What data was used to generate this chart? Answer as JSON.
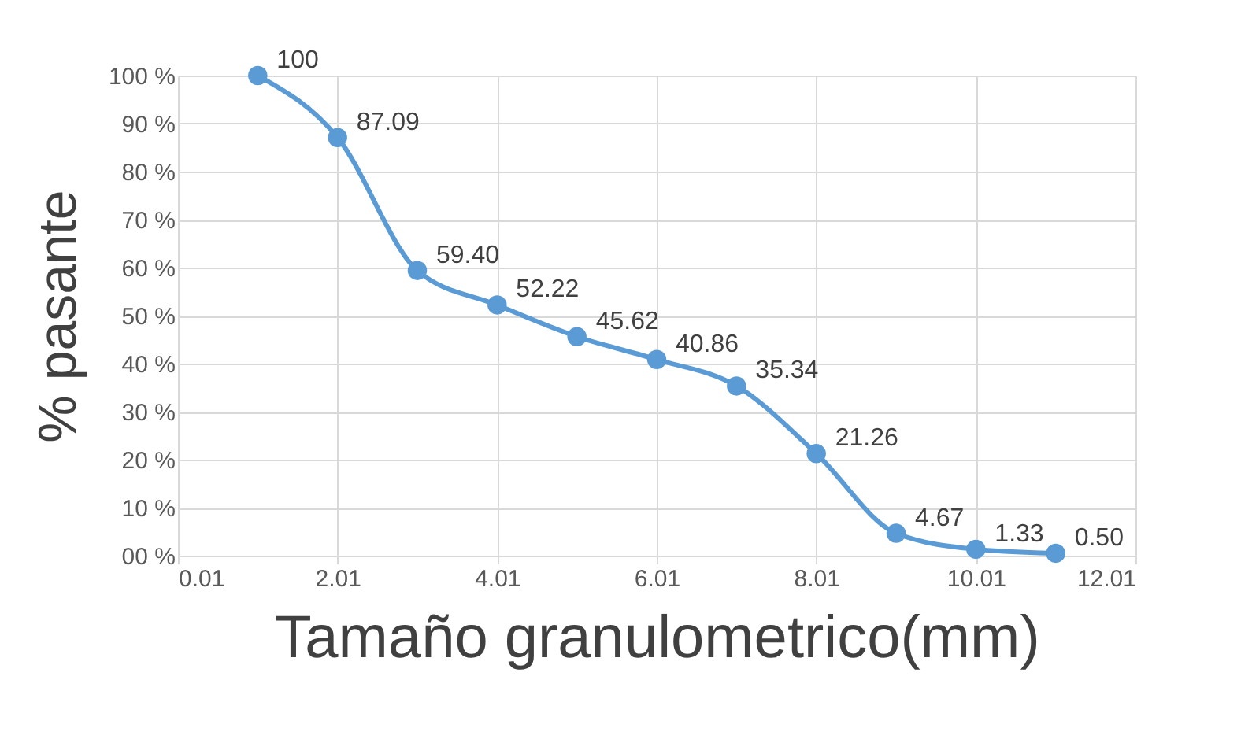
{
  "chart_data": {
    "type": "line",
    "xlabel": "Tamaño granulometrico(mm)",
    "ylabel": "% pasante",
    "x": [
      1.01,
      2.01,
      3.01,
      4.01,
      5.01,
      6.01,
      7.01,
      8.01,
      9.01,
      10.01,
      11.01
    ],
    "series": [
      {
        "color": "#5b9bd5",
        "values": [
          100,
          87.09,
          59.4,
          52.22,
          45.62,
          40.86,
          35.34,
          21.26,
          4.67,
          1.33,
          0.5
        ],
        "value_labels": [
          "100",
          "87.09",
          "59.40",
          "52.22",
          "45.62",
          "40.86",
          "35.34",
          "21.26",
          "4.67",
          "1.33",
          "0.50"
        ]
      }
    ],
    "xlim": [
      0.01,
      12.01
    ],
    "xticks": [
      0.01,
      2.01,
      4.01,
      6.01,
      8.01,
      10.01,
      12.01
    ],
    "ylim": [
      0,
      100
    ],
    "yticks": [
      {
        "value": 0,
        "label": "00 %"
      },
      {
        "value": 10,
        "label": "10 %"
      },
      {
        "value": 20,
        "label": "20 %"
      },
      {
        "value": 30,
        "label": "30 %"
      },
      {
        "value": 40,
        "label": "40 %"
      },
      {
        "value": 50,
        "label": "50 %"
      },
      {
        "value": 60,
        "label": "60 %"
      },
      {
        "value": 70,
        "label": "70 %"
      },
      {
        "value": 80,
        "label": "80 %"
      },
      {
        "value": 90,
        "label": "90 %"
      },
      {
        "value": 100,
        "label": "100 %"
      }
    ],
    "grid": true,
    "marker": "circle",
    "line_style": "solid"
  }
}
